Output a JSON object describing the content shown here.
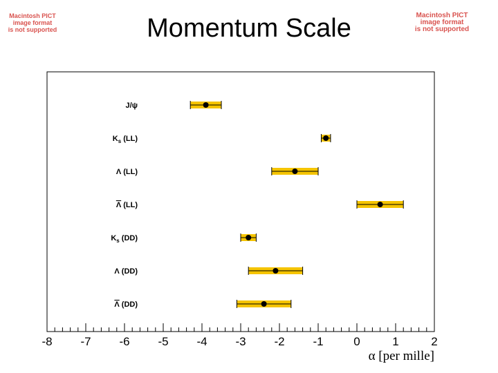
{
  "slide": {
    "title": "Momentum Scale",
    "placeholder_left": [
      "Macintosh PICT",
      "image format",
      "is not supported"
    ],
    "placeholder_right": [
      "Macintosh PICT",
      "image format",
      "is not supported"
    ],
    "placeholder_color": "#d9534f"
  },
  "chart_data": {
    "type": "scatter",
    "title": "",
    "xlabel": "α [per mille]",
    "xlim": [
      -8,
      2
    ],
    "x_ticks": [
      "-8",
      "-7",
      "-6",
      "-5",
      "-4",
      "-3",
      "-2",
      "-1",
      "0",
      "1",
      "2"
    ],
    "band_color": "#f5c400",
    "marker_color": "#000000",
    "series": [
      {
        "label": "J/ψ",
        "label_main": "J/ψ",
        "label_sub": "",
        "label_suffix": "",
        "overline": false,
        "value": -3.9,
        "stat_err": [
          -4.3,
          -3.5
        ],
        "total_err": [
          -4.3,
          -3.5
        ]
      },
      {
        "label": "Ks (LL)",
        "label_main": "K",
        "label_sub": "s",
        "label_suffix": " (LL)",
        "overline": false,
        "value": -0.8,
        "stat_err": [
          -0.92,
          -0.68
        ],
        "total_err": [
          -0.92,
          -0.68
        ]
      },
      {
        "label": "Λ (LL)",
        "label_main": "Λ",
        "label_sub": "",
        "label_suffix": " (LL)",
        "overline": false,
        "value": -1.6,
        "stat_err": [
          -2.2,
          -1.0
        ],
        "total_err": [
          -2.2,
          -1.0
        ]
      },
      {
        "label": "Λ (LL)",
        "label_main": "Λ",
        "label_sub": "",
        "label_suffix": " (LL)",
        "overline": true,
        "value": 0.6,
        "stat_err": [
          0.0,
          1.2
        ],
        "total_err": [
          0.0,
          1.2
        ]
      },
      {
        "label": "Ks (DD)",
        "label_main": "K",
        "label_sub": "s",
        "label_suffix": " (DD)",
        "overline": false,
        "value": -2.8,
        "stat_err": [
          -3.0,
          -2.6
        ],
        "total_err": [
          -3.0,
          -2.6
        ]
      },
      {
        "label": "Λ (DD)",
        "label_main": "Λ",
        "label_sub": "",
        "label_suffix": " (DD)",
        "overline": false,
        "value": -2.1,
        "stat_err": [
          -2.8,
          -1.4
        ],
        "total_err": [
          -2.8,
          -1.4
        ]
      },
      {
        "label": "Λ (DD)",
        "label_main": "Λ",
        "label_sub": "",
        "label_suffix": " (DD)",
        "overline": true,
        "value": -2.4,
        "stat_err": [
          -3.1,
          -1.7
        ],
        "total_err": [
          -3.1,
          -1.7
        ]
      }
    ]
  }
}
